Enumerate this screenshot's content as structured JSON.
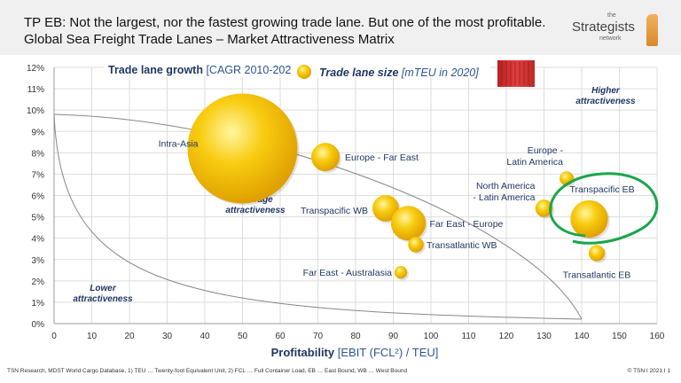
{
  "header": {
    "title_line1": "TP EB: Not the largest, nor the fastest growing trade lane.  But one of the most profitable.",
    "title_line2": "Global Sea Freight Trade Lanes – Market Attractiveness Matrix"
  },
  "logo": {
    "the": "the",
    "main": "Strategists",
    "network": "network"
  },
  "footer": {
    "source": "TSN Research, MDST World Cargo Database, 1) TEU … Twenty-foot Equivalent Unit, 2) FCL … Full Container Load, EB … East Bound, WB … West Bound",
    "copyright": "© TSN  I  2021  I  1"
  },
  "chart_data": {
    "type": "scatter",
    "subtype": "bubble",
    "ylabel_bold": "Trade lane growth",
    "ylabel_rest": " [CAGR 2010-2020]",
    "size_label_bold": "Trade lane size",
    "size_label_rest": " [mTEU in 2020]",
    "xlabel_bold": "Profitability",
    "xlabel_rest": " [EBIT (FCL²) / TEU]",
    "xlim": [
      0,
      160
    ],
    "ylim": [
      0,
      12
    ],
    "xticks": [
      "0",
      "10",
      "20",
      "30",
      "40",
      "50",
      "60",
      "70",
      "80",
      "90",
      "100",
      "110",
      "120",
      "130",
      "140",
      "150",
      "160"
    ],
    "yticks": [
      "0%",
      "1%",
      "2%",
      "3%",
      "4%",
      "5%",
      "6%",
      "7%",
      "8%",
      "9%",
      "10%",
      "11%",
      "12%"
    ],
    "grid": true,
    "zones": {
      "higher": [
        "Higher",
        "attractiveness"
      ],
      "average": [
        "Average",
        "attractiveness"
      ],
      "lower": [
        "Lower",
        "attractiveness"
      ]
    },
    "highlight": "Transpacific EB",
    "highlight_color": "#1aa64a",
    "bubble_color": "#f5c400",
    "points": [
      {
        "name": "Intra-Asia",
        "x": 50,
        "y": 8.2,
        "size": 60
      },
      {
        "name": "Europe - Far East",
        "x": 72,
        "y": 7.8,
        "size": 4
      },
      {
        "name": "Transpacific WB",
        "x": 88,
        "y": 5.4,
        "size": 3.5
      },
      {
        "name": "Far East - Europe",
        "x": 94,
        "y": 4.7,
        "size": 6
      },
      {
        "name": "Transatlantic WB",
        "x": 96,
        "y": 3.7,
        "size": 1.2
      },
      {
        "name": "Far East - Australasia",
        "x": 92,
        "y": 2.4,
        "size": 0.8
      },
      {
        "name": "North America - Latin America",
        "x": 130,
        "y": 5.4,
        "size": 1.5
      },
      {
        "name": "Europe - Latin America",
        "x": 136,
        "y": 6.8,
        "size": 1
      },
      {
        "name": "Transpacific EB",
        "x": 142,
        "y": 4.9,
        "size": 7
      },
      {
        "name": "Transatlantic EB",
        "x": 144,
        "y": 3.3,
        "size": 1.3
      }
    ]
  }
}
